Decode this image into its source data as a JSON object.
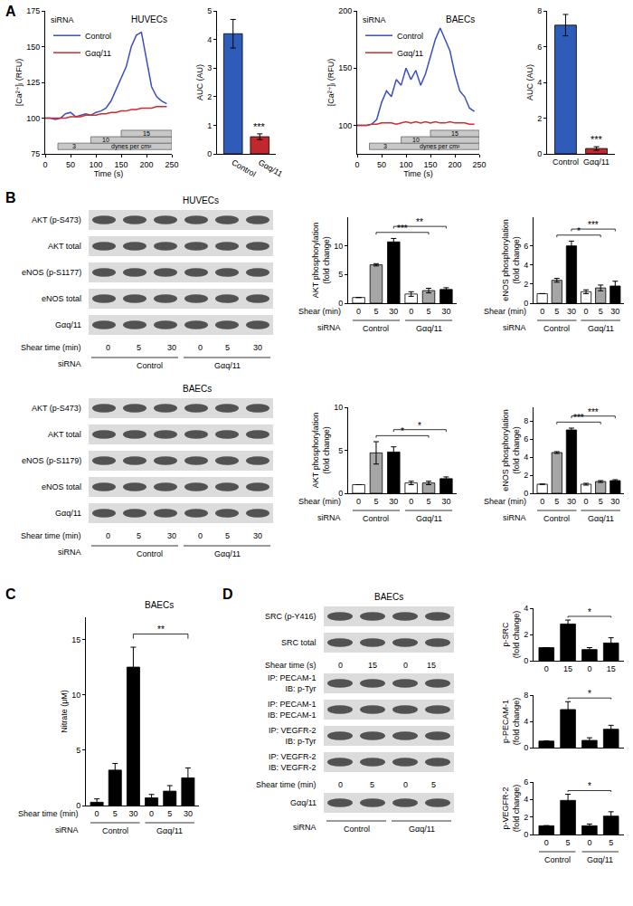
{
  "panel_labels": [
    "A",
    "B",
    "C",
    "D"
  ],
  "chart_data": [
    {
      "type": "line",
      "title": "HUVECs",
      "x_label": "Time (s)",
      "y_label": "[Ca²⁺]ᵢ (RFU)",
      "x": [
        0,
        10,
        20,
        30,
        40,
        50,
        60,
        70,
        80,
        90,
        100,
        110,
        120,
        130,
        140,
        150,
        160,
        170,
        180,
        190,
        200,
        210,
        220,
        230,
        240
      ],
      "series": [
        {
          "name": "Control",
          "color": "#3b4fc4",
          "values": [
            100,
            100,
            99,
            100,
            103,
            104,
            101,
            102,
            103,
            102,
            104,
            105,
            107,
            112,
            120,
            127,
            136,
            150,
            158,
            160,
            140,
            122,
            115,
            112,
            110
          ]
        },
        {
          "name": "Gαq/11",
          "color": "#d12b2b",
          "values": [
            100,
            100,
            100,
            100,
            100,
            101,
            101,
            101,
            102,
            102,
            102,
            103,
            103,
            104,
            104,
            105,
            105,
            106,
            106,
            107,
            107,
            107,
            108,
            108,
            108
          ]
        }
      ],
      "legend_title": "siRNA",
      "legend": "upper left",
      "xlim": [
        0,
        250
      ],
      "xticks": [
        0,
        50,
        100,
        150,
        200,
        250
      ],
      "ylim": [
        75,
        175
      ],
      "yticks": [
        75,
        100,
        125,
        150,
        175
      ],
      "shear_steps": [
        {
          "label": "3",
          "start": 25
        },
        {
          "label": "10",
          "start": 90
        },
        {
          "label": "15",
          "start": 150
        }
      ],
      "shear_unit": "dynes per cm²"
    },
    {
      "type": "bar",
      "y_label": "AUC (AU)",
      "categories": [
        "Control",
        "Gαq/11"
      ],
      "values": [
        4.2,
        0.6
      ],
      "errors": [
        0.5,
        0.1
      ],
      "colors": [
        "#2e5cb8",
        "#c0282d"
      ],
      "ylim": [
        0,
        5
      ],
      "yticks": [
        0,
        1,
        2,
        3,
        4,
        5
      ],
      "significance": [
        {
          "at": 1,
          "label": "***"
        }
      ]
    },
    {
      "type": "line",
      "title": "BAECs",
      "x_label": "Time (s)",
      "y_label": "[Ca²⁺]ᵢ (RFU)",
      "x": [
        0,
        10,
        20,
        30,
        40,
        50,
        60,
        70,
        80,
        90,
        100,
        110,
        120,
        130,
        140,
        150,
        160,
        170,
        180,
        190,
        200,
        210,
        220,
        230,
        240
      ],
      "series": [
        {
          "name": "Control",
          "color": "#3b4fc4",
          "values": [
            100,
            100,
            100,
            101,
            105,
            120,
            130,
            125,
            140,
            135,
            150,
            140,
            148,
            135,
            145,
            160,
            175,
            185,
            175,
            165,
            145,
            130,
            125,
            115,
            112
          ]
        },
        {
          "name": "Gαq/11",
          "color": "#d12b2b",
          "values": [
            100,
            100,
            100,
            101,
            101,
            102,
            102,
            102,
            101,
            102,
            103,
            102,
            103,
            102,
            103,
            102,
            103,
            102,
            102,
            103,
            102,
            102,
            102,
            101,
            101
          ]
        }
      ],
      "legend_title": "siRNA",
      "legend": "upper left",
      "xlim": [
        0,
        250
      ],
      "xticks": [
        0,
        50,
        100,
        150,
        200,
        250
      ],
      "ylim": [
        75,
        200
      ],
      "yticks": [
        100,
        150,
        200
      ],
      "shear_steps": [
        {
          "label": "3",
          "start": 25
        },
        {
          "label": "10",
          "start": 90
        },
        {
          "label": "15",
          "start": 150
        }
      ],
      "shear_unit": "dynes per cm²"
    },
    {
      "type": "bar",
      "y_label": "AUC (AU)",
      "categories": [
        "Control",
        "Gαq/11"
      ],
      "values": [
        7.2,
        0.3
      ],
      "errors": [
        0.6,
        0.1
      ],
      "colors": [
        "#2e5cb8",
        "#c0282d"
      ],
      "ylim": [
        0,
        8
      ],
      "yticks": [
        0,
        2,
        4,
        6,
        8
      ],
      "significance": [
        {
          "at": 1,
          "label": "***"
        }
      ]
    },
    {
      "type": "bar",
      "y_label": [
        "AKT phosphorylation",
        "(fold change)"
      ],
      "categories": [
        "0",
        "5",
        "30",
        "0",
        "5",
        "30"
      ],
      "values": [
        1,
        6.7,
        10.7,
        1.6,
        2.2,
        2.4
      ],
      "errors": [
        0,
        0.2,
        0.6,
        0.4,
        0.4,
        0.3
      ],
      "colors": [
        "#ffffff",
        "#a6a6a6",
        "#000000",
        "#ffffff",
        "#a6a6a6",
        "#000000"
      ],
      "ylim": [
        0,
        15
      ],
      "yticks": [
        0,
        5,
        10
      ],
      "brackets": [
        {
          "from": 1,
          "to": 4,
          "label": "***"
        },
        {
          "from": 2,
          "to": 5,
          "label": "**"
        }
      ],
      "x_label": "Shear (min)",
      "group_title": "siRNA",
      "groups": [
        {
          "label": "Control",
          "from": 0,
          "to": 2
        },
        {
          "label": "Gαq/11",
          "from": 3,
          "to": 5
        }
      ]
    },
    {
      "type": "bar",
      "y_label": [
        "eNOS phosphorylation",
        "(fold change)"
      ],
      "categories": [
        "0",
        "5",
        "30",
        "0",
        "5",
        "30"
      ],
      "values": [
        1,
        2.4,
        6.0,
        1.2,
        1.6,
        1.8
      ],
      "errors": [
        0,
        0.2,
        0.5,
        0.2,
        0.3,
        0.5
      ],
      "colors": [
        "#ffffff",
        "#a6a6a6",
        "#000000",
        "#ffffff",
        "#a6a6a6",
        "#000000"
      ],
      "ylim": [
        0,
        9
      ],
      "yticks": [
        0,
        2,
        4,
        6
      ],
      "brackets": [
        {
          "from": 1,
          "to": 4,
          "label": "*"
        },
        {
          "from": 2,
          "to": 5,
          "label": "***"
        }
      ],
      "x_label": "Shear (min)",
      "group_title": "siRNA",
      "groups": [
        {
          "label": "Control",
          "from": 0,
          "to": 2
        },
        {
          "label": "Gαq/11",
          "from": 3,
          "to": 5
        }
      ]
    },
    {
      "type": "bar",
      "y_label": [
        "AKT phosphorylation",
        "(fold change)"
      ],
      "categories": [
        "0",
        "5",
        "30",
        "0",
        "5",
        "30"
      ],
      "values": [
        1,
        4.7,
        4.8,
        1.2,
        1.2,
        1.7
      ],
      "errors": [
        0,
        1.3,
        0.6,
        0.2,
        0.2,
        0.2
      ],
      "colors": [
        "#ffffff",
        "#a6a6a6",
        "#000000",
        "#ffffff",
        "#a6a6a6",
        "#000000"
      ],
      "ylim": [
        0,
        10
      ],
      "yticks": [
        0,
        5,
        10
      ],
      "brackets": [
        {
          "from": 1,
          "to": 4,
          "label": "*"
        },
        {
          "from": 2,
          "to": 5,
          "label": "*"
        }
      ],
      "x_label": "Shear (min)",
      "group_title": "siRNA",
      "groups": [
        {
          "label": "Control",
          "from": 0,
          "to": 2
        },
        {
          "label": "Gαq/11",
          "from": 3,
          "to": 5
        }
      ]
    },
    {
      "type": "bar",
      "y_label": [
        "eNOS phosphorylation",
        "(fold change)"
      ],
      "categories": [
        "0",
        "5",
        "30",
        "0",
        "5",
        "30"
      ],
      "values": [
        1,
        4.5,
        7.0,
        1.0,
        1.3,
        1.4
      ],
      "errors": [
        0,
        0.1,
        0.2,
        0.1,
        0.1,
        0.1
      ],
      "colors": [
        "#ffffff",
        "#a6a6a6",
        "#000000",
        "#ffffff",
        "#a6a6a6",
        "#000000"
      ],
      "ylim": [
        0,
        9.5
      ],
      "yticks": [
        0,
        2,
        4,
        6,
        8
      ],
      "brackets": [
        {
          "from": 1,
          "to": 4,
          "label": "***"
        },
        {
          "from": 2,
          "to": 5,
          "label": "***"
        }
      ],
      "x_label": "Shear (min)",
      "group_title": "siRNA",
      "groups": [
        {
          "label": "Control",
          "from": 0,
          "to": 2
        },
        {
          "label": "Gαq/11",
          "from": 3,
          "to": 5
        }
      ]
    },
    {
      "type": "bar",
      "title": "BAECs",
      "y_label": "Nitrate (μM)",
      "categories": [
        "0",
        "5",
        "30",
        "0",
        "5",
        "30"
      ],
      "values": [
        0.3,
        3.2,
        12.5,
        0.7,
        1.3,
        2.5
      ],
      "errors": [
        0.3,
        0.6,
        1.8,
        0.3,
        0.5,
        0.9
      ],
      "colors": [
        "#000000",
        "#000000",
        "#000000",
        "#000000",
        "#000000",
        "#000000"
      ],
      "ylim": [
        0,
        17
      ],
      "yticks": [
        0,
        5,
        10,
        15
      ],
      "brackets": [
        {
          "from": 2,
          "to": 5,
          "label": "**"
        }
      ],
      "x_label": "Shear time (min)",
      "group_title": "siRNA",
      "groups": [
        {
          "label": "Control",
          "from": 0,
          "to": 2
        },
        {
          "label": "Gαq/11",
          "from": 3,
          "to": 5
        }
      ]
    },
    {
      "type": "bar",
      "y_label": [
        "p-SRC",
        "(fold change)"
      ],
      "categories": [
        "0",
        "15",
        "0",
        "15"
      ],
      "values": [
        1,
        2.8,
        0.85,
        1.35
      ],
      "errors": [
        0,
        0.3,
        0.15,
        0.4
      ],
      "color": "#000000",
      "ylim": [
        0,
        4
      ],
      "yticks": [
        0,
        2,
        4
      ],
      "brackets": [
        {
          "from": 1,
          "to": 3,
          "label": "*"
        }
      ]
    },
    {
      "type": "bar",
      "y_label": [
        "p-PECAM-1",
        "(fold change)"
      ],
      "categories": [
        null,
        null,
        null,
        null
      ],
      "values": [
        1,
        5.8,
        1.1,
        2.8
      ],
      "errors": [
        0,
        1.2,
        0.4,
        0.6
      ],
      "color": "#000000",
      "ylim": [
        0,
        8
      ],
      "yticks": [
        0,
        4,
        8
      ],
      "brackets": [
        {
          "from": 1,
          "to": 3,
          "label": "*"
        }
      ],
      "tick_labels": "y"
    },
    {
      "type": "bar",
      "y_label": [
        "p-VEGFR-2",
        "(fold change)"
      ],
      "categories": [
        "0",
        "5",
        "0",
        "5"
      ],
      "values": [
        1,
        3.9,
        1.0,
        2.1
      ],
      "errors": [
        0,
        0.7,
        0.2,
        0.5
      ],
      "color": "#000000",
      "ylim": [
        0,
        6
      ],
      "yticks": [
        0,
        2,
        4,
        6
      ],
      "brackets": [
        {
          "from": 1,
          "to": 3,
          "label": "*"
        }
      ],
      "groups": [
        {
          "label": "Control",
          "from": 0,
          "to": 1
        },
        {
          "label": "Gαq/11",
          "from": 2,
          "to": 3
        }
      ]
    }
  ],
  "blots": [
    {
      "title": "HUVECs",
      "items": [
        {
          "kind": "band",
          "label": "AKT (p-S473)"
        },
        {
          "kind": "band",
          "label": "AKT total"
        },
        {
          "kind": "band",
          "label": "eNOS (p-S1177)"
        },
        {
          "kind": "band",
          "label": "eNOS total"
        },
        {
          "kind": "band",
          "label": "Gαq/11"
        },
        {
          "kind": "lanes",
          "label": "Shear time (min)",
          "values": [
            0,
            5,
            30,
            0,
            5,
            30
          ]
        },
        {
          "kind": "groups",
          "label": "siRNA",
          "groups": [
            {
              "label": "Control",
              "from": 0,
              "to": 2
            },
            {
              "label": "Gαq/11",
              "from": 3,
              "to": 5
            }
          ]
        }
      ]
    },
    {
      "title": "BAECs",
      "items": [
        {
          "kind": "band",
          "label": "AKT (p-S473)"
        },
        {
          "kind": "band",
          "label": "AKT total"
        },
        {
          "kind": "band",
          "label": "eNOS (p-S1179)"
        },
        {
          "kind": "band",
          "label": "eNOS total"
        },
        {
          "kind": "band",
          "label": "Gαq/11"
        },
        {
          "kind": "lanes",
          "label": "Shear time (min)",
          "values": [
            0,
            5,
            30,
            0,
            5,
            30
          ]
        },
        {
          "kind": "groups",
          "label": "siRNA",
          "groups": [
            {
              "label": "Control",
              "from": 0,
              "to": 2
            },
            {
              "label": "Gαq/11",
              "from": 3,
              "to": 5
            }
          ]
        }
      ]
    },
    {
      "title": "BAECs",
      "items": [
        {
          "kind": "band",
          "label": "SRC (p-Y416)"
        },
        {
          "kind": "band",
          "label": "SRC total"
        },
        {
          "kind": "lanes",
          "label": "Shear time (s)",
          "values": [
            0,
            15,
            0,
            15
          ]
        },
        {
          "kind": "band",
          "label": [
            "IP: PECAM-1",
            "IB: p-Tyr"
          ]
        },
        {
          "kind": "band",
          "label": [
            "IP: PECAM-1",
            "IB: PECAM-1"
          ]
        },
        {
          "kind": "band",
          "label": [
            "IP: VEGFR-2",
            "IB: p-Tyr"
          ]
        },
        {
          "kind": "band",
          "label": [
            "IP: VEGFR-2",
            "IB: VEGFR-2"
          ]
        },
        {
          "kind": "lanes",
          "label": "Shear time (min)",
          "values": [
            0,
            5,
            0,
            5
          ]
        },
        {
          "kind": "band",
          "label": "Gαq/11"
        },
        {
          "kind": "groups",
          "label": "siRNA",
          "groups": [
            {
              "label": "Control",
              "from": 0,
              "to": 1
            },
            {
              "label": "Gαq/11",
              "from": 2,
              "to": 3
            }
          ]
        }
      ]
    }
  ]
}
